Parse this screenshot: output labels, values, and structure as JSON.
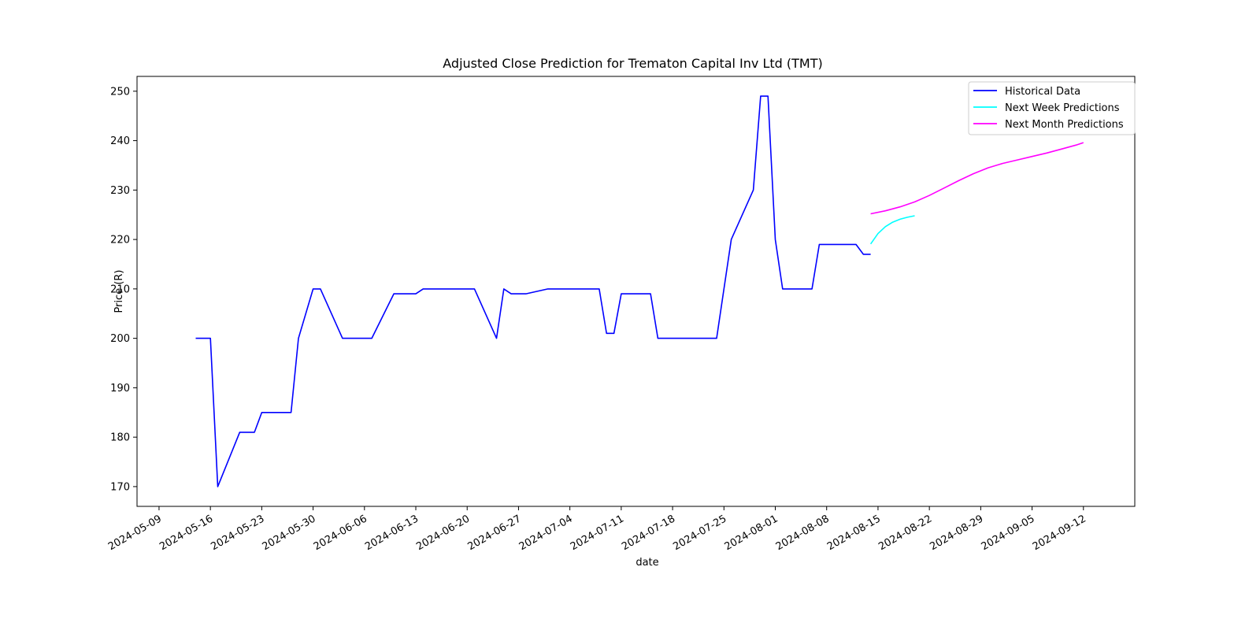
{
  "chart_data": {
    "type": "line",
    "title": "Adjusted Close Prediction for Trematon Capital Inv Ltd (TMT)",
    "xlabel": "date",
    "ylabel": "Price (R)",
    "xlim": [
      "2024-05-06",
      "2024-09-19"
    ],
    "ylim": [
      166,
      253
    ],
    "x_ticks": [
      "2024-05-09",
      "2024-05-16",
      "2024-05-23",
      "2024-05-30",
      "2024-06-06",
      "2024-06-13",
      "2024-06-20",
      "2024-06-27",
      "2024-07-04",
      "2024-07-11",
      "2024-07-18",
      "2024-07-25",
      "2024-08-01",
      "2024-08-08",
      "2024-08-15",
      "2024-08-22",
      "2024-08-29",
      "2024-09-05",
      "2024-09-12"
    ],
    "y_ticks": [
      170,
      180,
      190,
      200,
      210,
      220,
      230,
      240,
      250
    ],
    "grid": false,
    "legend_position": "top-right",
    "series": [
      {
        "name": "Historical Data",
        "color": "#0000ff",
        "x": [
          "2024-05-14",
          "2024-05-15",
          "2024-05-16",
          "2024-05-17",
          "2024-05-20",
          "2024-05-21",
          "2024-05-22",
          "2024-05-23",
          "2024-05-24",
          "2024-05-27",
          "2024-05-28",
          "2024-05-30",
          "2024-05-31",
          "2024-06-03",
          "2024-06-04",
          "2024-06-05",
          "2024-06-06",
          "2024-06-07",
          "2024-06-10",
          "2024-06-11",
          "2024-06-12",
          "2024-06-13",
          "2024-06-14",
          "2024-06-17",
          "2024-06-18",
          "2024-06-19",
          "2024-06-20",
          "2024-06-21",
          "2024-06-24",
          "2024-06-25",
          "2024-06-26",
          "2024-06-27",
          "2024-06-28",
          "2024-07-01",
          "2024-07-02",
          "2024-07-03",
          "2024-07-04",
          "2024-07-05",
          "2024-07-08",
          "2024-07-09",
          "2024-07-10",
          "2024-07-11",
          "2024-07-12",
          "2024-07-15",
          "2024-07-16",
          "2024-07-17",
          "2024-07-18",
          "2024-07-19",
          "2024-07-22",
          "2024-07-23",
          "2024-07-24",
          "2024-07-26",
          "2024-07-29",
          "2024-07-30",
          "2024-07-31",
          "2024-08-01",
          "2024-08-02",
          "2024-08-05",
          "2024-08-06",
          "2024-08-07",
          "2024-08-08",
          "2024-08-12",
          "2024-08-13",
          "2024-08-14"
        ],
        "values": [
          200,
          200,
          200,
          170,
          181,
          181,
          181,
          185,
          185,
          185,
          200,
          210,
          210,
          200,
          200,
          200,
          200,
          200,
          209,
          209,
          209,
          209,
          210,
          210,
          210,
          210,
          210,
          210,
          200,
          210,
          209,
          209,
          209,
          210,
          210,
          210,
          210,
          210,
          210,
          201,
          201,
          209,
          209,
          209,
          200,
          200,
          200,
          200,
          200,
          200,
          200,
          220,
          230,
          249,
          249,
          220,
          210,
          210,
          210,
          219,
          219,
          219,
          217,
          217
        ]
      },
      {
        "name": "Next Week Predictions",
        "color": "#00ffff",
        "x": [
          "2024-08-14",
          "2024-08-15",
          "2024-08-16",
          "2024-08-17",
          "2024-08-18",
          "2024-08-19",
          "2024-08-20"
        ],
        "values": [
          219.1,
          221.2,
          222.6,
          223.5,
          224.1,
          224.5,
          224.8
        ]
      },
      {
        "name": "Next Month Predictions",
        "color": "#ff00ff",
        "x": [
          "2024-08-14",
          "2024-08-16",
          "2024-08-18",
          "2024-08-20",
          "2024-08-22",
          "2024-08-24",
          "2024-08-26",
          "2024-08-28",
          "2024-08-30",
          "2024-09-01",
          "2024-09-03",
          "2024-09-05",
          "2024-09-07",
          "2024-09-09",
          "2024-09-11",
          "2024-09-12"
        ],
        "values": [
          225.2,
          225.8,
          226.6,
          227.6,
          228.9,
          230.4,
          231.9,
          233.3,
          234.5,
          235.4,
          236.1,
          236.8,
          237.5,
          238.3,
          239.1,
          239.6
        ]
      }
    ]
  }
}
